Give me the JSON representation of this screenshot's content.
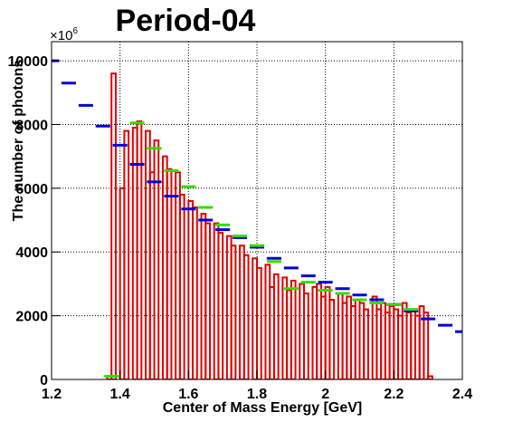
{
  "chart_data": {
    "type": "histogram",
    "title": "Period-04",
    "x_label": "Center of Mass Energy [GeV]",
    "y_label": "The number of photons",
    "multiplier": {
      "base": "×10",
      "exponent": "6"
    },
    "xlim": [
      1.2,
      2.4
    ],
    "ylim": [
      0,
      10600
    ],
    "xticks": [
      1.2,
      1.4,
      1.6,
      1.8,
      2,
      2.2,
      2.4
    ],
    "yticks": [
      0,
      2000,
      4000,
      6000,
      8000,
      10000
    ],
    "grid": true,
    "color": "#e00000",
    "bins": [
      1.2,
      1.2125,
      1.225,
      1.2375,
      1.25,
      1.2625,
      1.275,
      1.2875,
      1.3,
      1.3125,
      1.325,
      1.3375,
      1.35,
      1.3625,
      1.375,
      1.3875,
      1.4,
      1.4125,
      1.425,
      1.4375,
      1.45,
      1.4625,
      1.475,
      1.4875,
      1.5,
      1.5125,
      1.525,
      1.5375,
      1.55,
      1.5625,
      1.575,
      1.5875,
      1.6,
      1.6125,
      1.625,
      1.6375,
      1.65,
      1.6625,
      1.675,
      1.6875,
      1.7,
      1.7125,
      1.725,
      1.7375,
      1.75,
      1.7625,
      1.775,
      1.7875,
      1.8,
      1.8125,
      1.825,
      1.8375,
      1.85,
      1.8625,
      1.875,
      1.8875,
      1.9,
      1.9125,
      1.925,
      1.9375,
      1.95,
      1.9625,
      1.975,
      1.9875,
      2.0,
      2.0125,
      2.025,
      2.0375,
      2.05,
      2.0625,
      2.075,
      2.0875,
      2.1,
      2.1125,
      2.125,
      2.1375,
      2.15,
      2.1625,
      2.175,
      2.1875,
      2.2,
      2.2125,
      2.225,
      2.2375,
      2.25,
      2.2625,
      2.275,
      2.2875,
      2.3,
      2.3125,
      2.325,
      2.3375,
      2.35,
      2.3625,
      2.375,
      2.3875,
      2.4
    ],
    "values": [
      0,
      0,
      0,
      0,
      0,
      0,
      0,
      0,
      0,
      0,
      0,
      0,
      0,
      100,
      9600,
      0,
      6000,
      7800,
      0,
      7900,
      8100,
      0,
      7800,
      6500,
      7500,
      0,
      7000,
      6600,
      0,
      6500,
      5800,
      0,
      5600,
      5400,
      0,
      5200,
      4900,
      0,
      4900,
      4600,
      0,
      4500,
      4200,
      0,
      4200,
      3900,
      0,
      3800,
      3500,
      0,
      3600,
      2900,
      3300,
      0,
      3200,
      2800,
      3100,
      0,
      3000,
      2700,
      0,
      2900,
      3000,
      2600,
      2900,
      2500,
      0,
      2700,
      2400,
      2600,
      2300,
      2500,
      2400,
      2200,
      0,
      2600,
      2200,
      2400,
      2100,
      2300,
      2200,
      2000,
      2400,
      2100,
      2200,
      2000,
      2300,
      2100,
      100,
      0,
      0,
      0,
      0,
      0,
      0,
      0
    ],
    "overlays": [
      {
        "type": "dash",
        "color": "#0000dd",
        "x": [
          1.2,
          1.25,
          1.3,
          1.35,
          1.4,
          1.45,
          1.5,
          1.55,
          1.6,
          1.65,
          1.7,
          1.75,
          1.8,
          1.85,
          1.9,
          1.95,
          2.0,
          2.05,
          2.1,
          2.15,
          2.2,
          2.25,
          2.3,
          2.35,
          2.4
        ],
        "values": [
          10000,
          9300,
          8600,
          7950,
          7350,
          6750,
          6200,
          5750,
          5350,
          5000,
          4700,
          4450,
          4150,
          3800,
          3500,
          3250,
          3050,
          2850,
          2650,
          2500,
          2350,
          2150,
          1900,
          1700,
          1500
        ]
      },
      {
        "type": "dash",
        "color": "#33dd00",
        "x": [
          1.375,
          1.45,
          1.5,
          1.55,
          1.6,
          1.65,
          1.7,
          1.75,
          1.8,
          1.85,
          1.9,
          1.95,
          2.0,
          2.05,
          2.1,
          2.15,
          2.2,
          2.25
        ],
        "values": [
          100,
          8050,
          7250,
          6550,
          6050,
          5400,
          4850,
          4500,
          4200,
          3700,
          2850,
          3050,
          2800,
          2700,
          2500,
          2400,
          2350,
          2200
        ]
      }
    ]
  }
}
